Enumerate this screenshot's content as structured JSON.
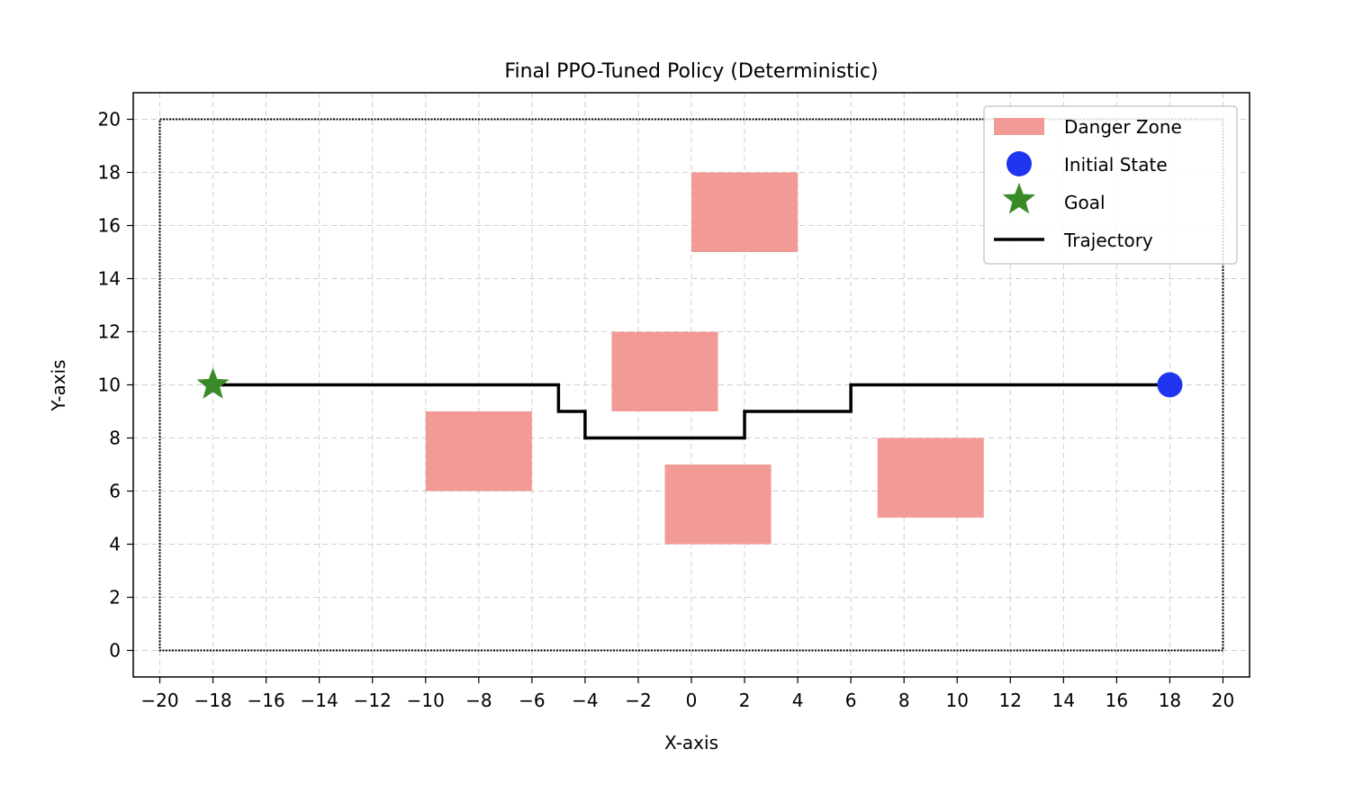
{
  "chart_data": {
    "type": "scatter",
    "title": "Final PPO-Tuned Policy (Deterministic)",
    "xlabel": "X-axis",
    "ylabel": "Y-axis",
    "xlim": [
      -21,
      21
    ],
    "ylim": [
      -1,
      21
    ],
    "xticks": [
      -20,
      -18,
      -16,
      -14,
      -12,
      -10,
      -8,
      -6,
      -4,
      -2,
      0,
      2,
      4,
      6,
      8,
      10,
      12,
      14,
      16,
      18,
      20
    ],
    "yticks": [
      0,
      2,
      4,
      6,
      8,
      10,
      12,
      14,
      16,
      18,
      20
    ],
    "grid": true,
    "legend_position": "top-right",
    "boundary": {
      "x": [
        -20,
        20
      ],
      "y": [
        0,
        20
      ]
    },
    "danger_zones": [
      {
        "x": 0,
        "y": 15,
        "width": 4,
        "height": 3
      },
      {
        "x": -3,
        "y": 9,
        "width": 4,
        "height": 3
      },
      {
        "x": -10,
        "y": 6,
        "width": 4,
        "height": 3
      },
      {
        "x": -1,
        "y": 4,
        "width": 4,
        "height": 3
      },
      {
        "x": 7,
        "y": 5,
        "width": 4,
        "height": 3
      }
    ],
    "initial_state": {
      "x": 18,
      "y": 10
    },
    "goal": {
      "x": -18,
      "y": 10
    },
    "trajectory": [
      [
        18,
        10
      ],
      [
        6,
        10
      ],
      [
        6,
        9
      ],
      [
        2,
        9
      ],
      [
        2,
        8
      ],
      [
        -4,
        8
      ],
      [
        -4,
        9
      ],
      [
        -5,
        9
      ],
      [
        -5,
        10
      ],
      [
        -18,
        10
      ]
    ],
    "legend": [
      {
        "label": "Danger Zone",
        "kind": "patch"
      },
      {
        "label": "Initial State",
        "kind": "circle"
      },
      {
        "label": "Goal",
        "kind": "star"
      },
      {
        "label": "Trajectory",
        "kind": "line"
      }
    ],
    "colors": {
      "danger_zone": "#f29b96",
      "initial_state": "#1f35f0",
      "goal": "#3a8a2a",
      "trajectory": "#000000",
      "grid": "#d0d0d0",
      "boundary": "#000000"
    }
  }
}
